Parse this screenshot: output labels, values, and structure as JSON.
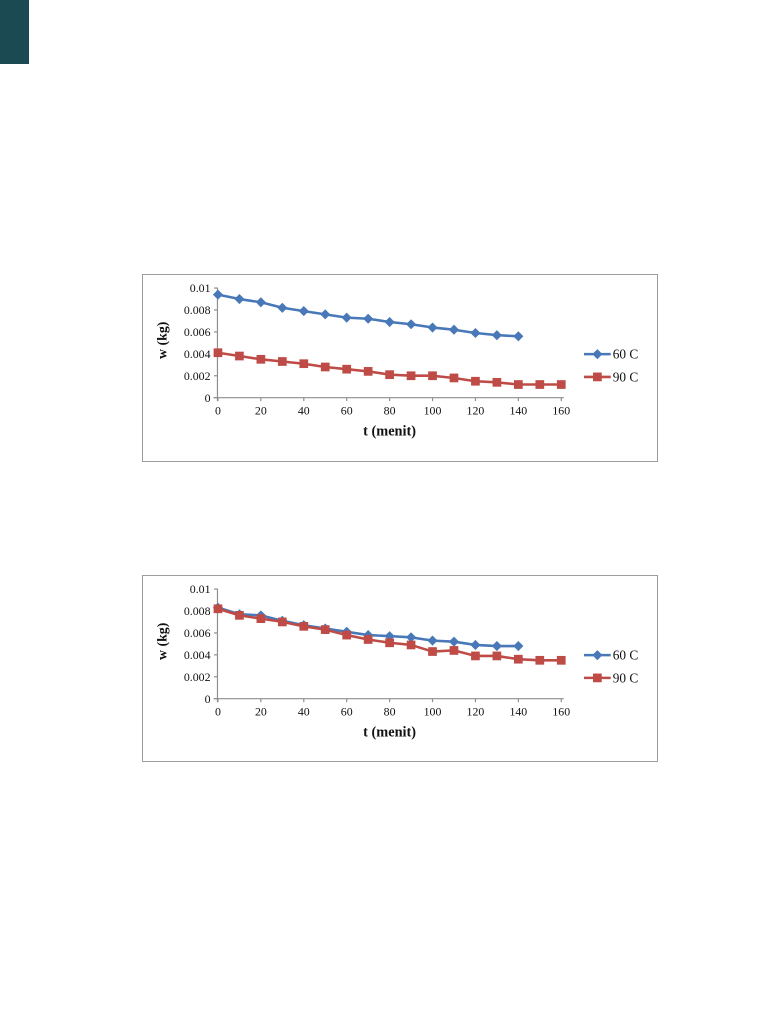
{
  "page": {
    "background_color": "#ffffff",
    "ribbon_color": "#1c4a52"
  },
  "chart_data": [
    {
      "type": "line",
      "title": "",
      "xlabel": "t (menit)",
      "ylabel": "w (kg)",
      "xlim": [
        0,
        160
      ],
      "ylim": [
        0,
        0.01
      ],
      "x_tick_labels": [
        "0",
        "20",
        "40",
        "60",
        "80",
        "100",
        "120",
        "140",
        "160"
      ],
      "x_tick_values": [
        0,
        20,
        40,
        60,
        80,
        100,
        120,
        140,
        160
      ],
      "y_tick_labels": [
        "0",
        "0.002",
        "0.004",
        "0.006",
        "0.008",
        "0.01"
      ],
      "y_tick_values": [
        0,
        0.002,
        0.004,
        0.006,
        0.008,
        0.01
      ],
      "grid": false,
      "legend_position": "right",
      "axis_color": "#8e8e8e",
      "text_color": "#111111",
      "series": [
        {
          "name": "60 C",
          "color": "#4878b8",
          "marker": "diamond",
          "x": [
            0,
            10,
            20,
            30,
            40,
            50,
            60,
            70,
            80,
            90,
            100,
            110,
            120,
            130,
            140
          ],
          "values": [
            0.0094,
            0.009,
            0.0087,
            0.0082,
            0.0079,
            0.0076,
            0.0073,
            0.0072,
            0.0069,
            0.0067,
            0.0064,
            0.0062,
            0.0059,
            0.0057,
            0.0056
          ]
        },
        {
          "name": "90 C",
          "color": "#bf4b47",
          "marker": "square",
          "x": [
            0,
            10,
            20,
            30,
            40,
            50,
            60,
            70,
            80,
            90,
            100,
            110,
            120,
            130,
            140,
            150,
            160
          ],
          "values": [
            0.0041,
            0.0038,
            0.0035,
            0.0033,
            0.0031,
            0.0028,
            0.0026,
            0.0024,
            0.0021,
            0.002,
            0.002,
            0.0018,
            0.0015,
            0.0014,
            0.0012,
            0.0012,
            0.0012
          ]
        }
      ]
    },
    {
      "type": "line",
      "title": "",
      "xlabel": "t (menit)",
      "ylabel": "w (kg)",
      "xlim": [
        0,
        160
      ],
      "ylim": [
        0,
        0.01
      ],
      "x_tick_labels": [
        "0",
        "20",
        "40",
        "60",
        "80",
        "100",
        "120",
        "140",
        "160"
      ],
      "x_tick_values": [
        0,
        20,
        40,
        60,
        80,
        100,
        120,
        140,
        160
      ],
      "y_tick_labels": [
        "0",
        "0.002",
        "0.004",
        "0.006",
        "0.008",
        "0.01"
      ],
      "y_tick_values": [
        0,
        0.002,
        0.004,
        0.006,
        0.008,
        0.01
      ],
      "grid": false,
      "legend_position": "right",
      "axis_color": "#8e8e8e",
      "text_color": "#111111",
      "series": [
        {
          "name": "60 C",
          "color": "#4878b8",
          "marker": "diamond",
          "x": [
            0,
            10,
            20,
            30,
            40,
            50,
            60,
            70,
            80,
            90,
            100,
            110,
            120,
            130,
            140
          ],
          "values": [
            0.0083,
            0.0077,
            0.0076,
            0.0071,
            0.0067,
            0.0064,
            0.0061,
            0.0058,
            0.0057,
            0.0056,
            0.0053,
            0.0052,
            0.0049,
            0.0048,
            0.0048
          ]
        },
        {
          "name": "90 C",
          "color": "#bf4b47",
          "marker": "square",
          "x": [
            0,
            10,
            20,
            30,
            40,
            50,
            60,
            70,
            80,
            90,
            100,
            110,
            120,
            130,
            140,
            150,
            160
          ],
          "values": [
            0.0082,
            0.0076,
            0.0073,
            0.007,
            0.0066,
            0.0063,
            0.0058,
            0.0054,
            0.0051,
            0.0049,
            0.0043,
            0.0044,
            0.0039,
            0.0039,
            0.0036,
            0.0035,
            0.0035
          ]
        }
      ]
    }
  ]
}
